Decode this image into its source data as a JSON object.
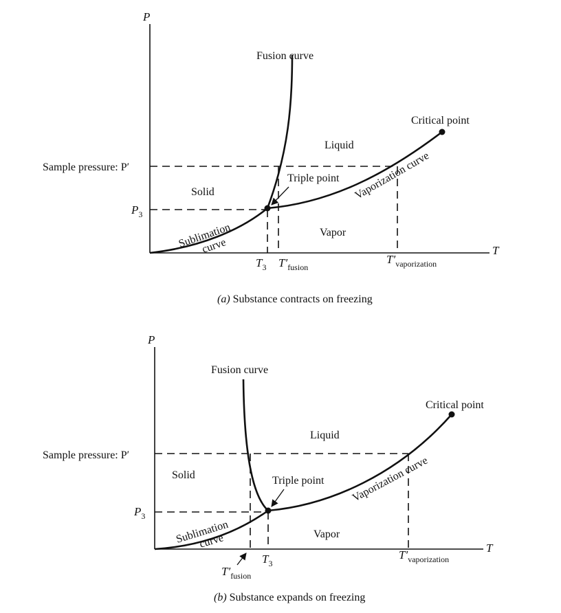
{
  "diagram_a": {
    "axis_y": "P",
    "axis_x": "T",
    "fusion_curve": "Fusion curve",
    "critical_point": "Critical point",
    "liquid": "Liquid",
    "solid": "Solid",
    "vapor": "Vapor",
    "triple_point": "Triple point",
    "vaporization_curve": "Vaporization curve",
    "sublimation_1": "Sublimation",
    "sublimation_2": "curve",
    "sample_pressure": "Sample pressure: P′",
    "p3": "P",
    "p3_sub": "3",
    "t3": "T",
    "t3_sub": "3",
    "tfusion": "T′",
    "tfusion_sub": "fusion",
    "tvap": "T′",
    "tvap_sub": "vaporization",
    "caption_prefix": "(a)",
    "caption": " Substance contracts on freezing"
  },
  "diagram_b": {
    "axis_y": "P",
    "axis_x": "T",
    "fusion_curve": "Fusion curve",
    "critical_point": "Critical point",
    "liquid": "Liquid",
    "solid": "Solid",
    "vapor": "Vapor",
    "triple_point": "Triple point",
    "vaporization_curve": "Vaporization curve",
    "sublimation_1": "Sublimation",
    "sublimation_2": "curve",
    "sample_pressure": "Sample pressure: P′",
    "p3": "P",
    "p3_sub": "3",
    "t3": "T",
    "t3_sub": "3",
    "tfusion": "T′",
    "tfusion_sub": "fusion",
    "tvap": "T′",
    "tvap_sub": "vaporization",
    "caption_prefix": "(b)",
    "caption": " Substance expands on freezing"
  }
}
